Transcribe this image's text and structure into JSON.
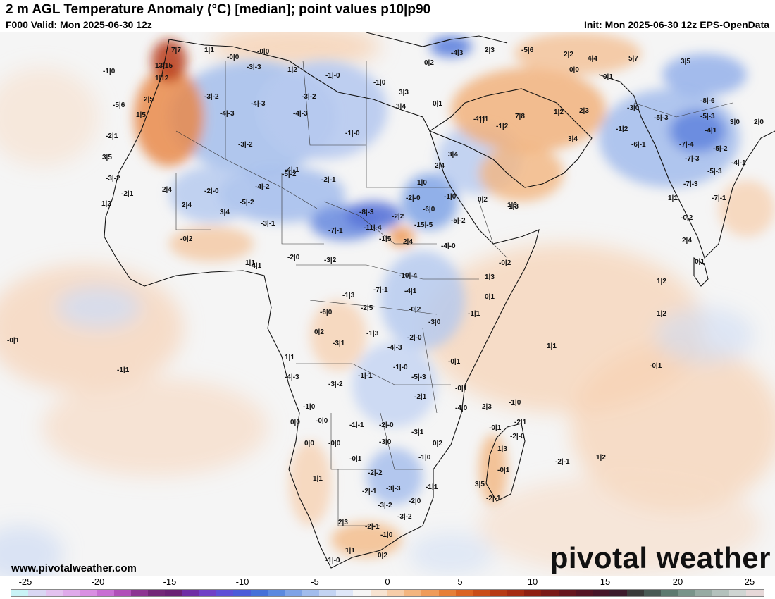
{
  "header": {
    "title": "2 m AGL Temperature Anomaly (°C) [median]; point values p10|p90",
    "valid": "F000 Valid: Mon 2025-06-30 12z",
    "init": "Init: Mon 2025-06-30 12z EPS-OpenData"
  },
  "footer": {
    "website": "www.pivotalweather.com",
    "brand": "pivotal weather"
  },
  "legend": {
    "ticks": [
      "-25",
      "-20",
      "-15",
      "-10",
      "-5",
      "0",
      "5",
      "10",
      "15",
      "20",
      "25"
    ],
    "colors": [
      "#c9f3f6",
      "#d9d7f3",
      "#e3c2ef",
      "#dfaaea",
      "#d98fe2",
      "#c86fd3",
      "#b04fb8",
      "#8d3492",
      "#732778",
      "#6a2174",
      "#6e2ea5",
      "#6f40c6",
      "#5d4fd6",
      "#4b5bd8",
      "#4570d8",
      "#5b89df",
      "#7fa3e6",
      "#a2bcec",
      "#c3d3f2",
      "#dfe7f8",
      "#f5f5f5",
      "#f7e3d1",
      "#f6cda9",
      "#f3b57f",
      "#ef9b59",
      "#e67f38",
      "#db6322",
      "#c94d18",
      "#b73a14",
      "#a62b12",
      "#8e1f12",
      "#7a1a18",
      "#66161e",
      "#541423",
      "#461528",
      "#3c1a2b",
      "#3a3a3a",
      "#4a5a55",
      "#5e7a70",
      "#7a948a",
      "#97aba3",
      "#b3c1bc",
      "#cfd5d2",
      "#e6d8d8"
    ]
  },
  "point_values": [
    "-3|-2",
    "-4|-3",
    "-4|-3",
    "-3|-3",
    "-1|-0",
    "-1|0",
    "3|3",
    "0|2",
    "-4|3",
    "-5|6",
    "2|2",
    "5|7",
    "4|4",
    "3|5",
    "7|7",
    "1|1",
    "-0|0",
    "-0|0",
    "1|2",
    "2|3",
    "0|0",
    "0|1",
    "3|4",
    "2|4",
    "13|15",
    "1|12",
    "-1|0",
    "-3|-2",
    "-4|-3",
    "-3|-2",
    "-1|-0",
    "0|1",
    "-1|1",
    "7|8",
    "1|2",
    "2|3",
    "-3|0",
    "-5|-3",
    "-8|-6",
    "-5|-3",
    "3|0",
    "2|0",
    "-4|1",
    "2|5",
    "1|5",
    "-5|6",
    "-2|1",
    "3|5",
    "-3|-2",
    "-2|1",
    "-2|-0",
    "-5|-2",
    "-4|-2",
    "-2|-1",
    "2|4",
    "1|2",
    "2|4",
    "3|4",
    "-5|-2",
    "-8|-3",
    "-7|-1",
    "-11|-4",
    "-15|-5",
    "-6|0",
    "-4|-0",
    "-5|-2",
    "-2|2",
    "-2|-0",
    "1|0",
    "-1|0",
    "0|2",
    "1|3",
    "-7|-4",
    "-6|-1",
    "-7|-3",
    "-5|-2",
    "-5|-3",
    "-4|-1",
    "-1|2",
    "-7|-3",
    "-7|-1",
    "1|1",
    "-0|2",
    "2|4",
    "0|1",
    "3|4",
    "3|4",
    "-1|1",
    "-4|-1",
    "-3|-1",
    "-1|2",
    "-0|2",
    "1|3",
    "-2|0",
    "-3|2",
    "1|1",
    "-4|1",
    "-1|5",
    "2|4",
    "-0|2",
    "-10|-4",
    "-7|-1",
    "-4|1",
    "-1|3",
    "-2|5",
    "-0|2",
    "1|3",
    "0|1",
    "-1|1",
    "-6|0",
    "0|2",
    "-3|0",
    "1|2",
    "1|2",
    "-0|1",
    "-1|1",
    "-4|-3",
    "-1|3",
    "-4|-3",
    "-2|-0",
    "-3|1",
    "1|1",
    "-0|1",
    "-0|1",
    "1|1",
    "-3|-2",
    "-1|-1",
    "-1|-0",
    "-5|-3",
    "-0|1",
    "-1|0",
    "-2|1",
    "-4|0",
    "2|3",
    "-1|0",
    "-2|1",
    "-0|1",
    "-2|-0",
    "0|0",
    "-0|0",
    "-1|-1",
    "-2|-0",
    "-3|1",
    "0|2",
    "0|0",
    "-0|0",
    "-0|1",
    "-3|0",
    "-1|0",
    "1|3",
    "-0|1",
    "-2|-1",
    "1|2",
    "1|1",
    "-2|-1",
    "-2|-2",
    "-3|-3",
    "-1|1",
    "3|5",
    "-2|-1",
    "-3|-2",
    "-2|0",
    "2|3",
    "-3|-2",
    "-2|-1",
    "-1|0",
    "1|1",
    "-1|-0",
    "0|2"
  ]
}
